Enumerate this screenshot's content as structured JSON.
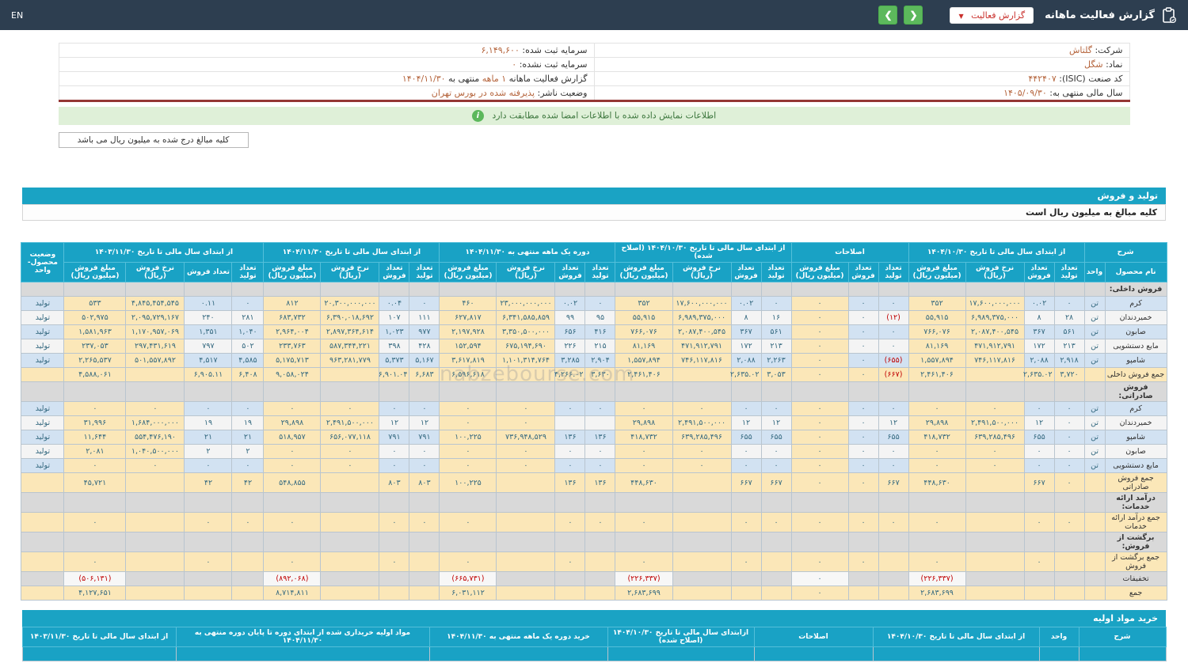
{
  "topbar": {
    "title": "گزارش فعالیت ماهانه",
    "dropdown": {
      "label": "گزارش فعالیت",
      "caret": "▼"
    },
    "nav": {
      "prev": "❮",
      "next": "❯"
    },
    "lang": "EN"
  },
  "info": {
    "rows": [
      {
        "right": {
          "label": "شرکت:",
          "value": "گلتاش"
        },
        "left": {
          "label": "سرمایه ثبت شده:",
          "value": "۶,۱۴۹,۶۰۰"
        }
      },
      {
        "right": {
          "label": "نماد:",
          "value": "شگل"
        },
        "left": {
          "label": "سرمایه ثبت نشده:",
          "value": "۰"
        }
      },
      {
        "right": {
          "label": "کد صنعت (ISIC):",
          "value": "۴۴۲۴۰۷"
        },
        "left": {
          "label": "گزارش فعالیت ماهانه",
          "value": "۱ ماهه",
          "label2": "منتهی به",
          "value2": "۱۴۰۴/۱۱/۳۰"
        }
      },
      {
        "right": {
          "label": "سال مالی منتهی به:",
          "value": "۱۴۰۵/۰۹/۳۰"
        },
        "left": {
          "label": "وضعیت ناشر:",
          "value": "پذیرفته شده در بورس تهران"
        }
      }
    ]
  },
  "alert": {
    "icon": "i",
    "text": "اطلاعات نمایش داده شده با اطلاعات امضا شده مطابقت دارد"
  },
  "note": {
    "text": "کلیه مبالغ درج شده به میلیون ریال می باشد"
  },
  "watermark": {
    "text": "nabzebourse.com"
  },
  "colors": {
    "topbar": "#2d3e50",
    "accent_blue": "#1aa3c4",
    "green": "#5cb85c",
    "alert_bg": "#dff0d8",
    "wheat": "#fbe7b8",
    "row_blue": "#d2e2f2",
    "negative_red": "#c00000",
    "value_orange": "#b5653d",
    "maroon_rule": "#943634"
  },
  "production_section": {
    "title": "تولید و فروش",
    "subtitle": "کلیه مبالغ به میلیون ریال است",
    "table": {
      "header": {
        "sharh": "شرح",
        "name": "نام محصول",
        "unit": "واحد",
        "status": "وضعیت محصول-واحد",
        "groups": [
          {
            "label": "از ابتدای سال مالی تا تاریخ ۱۴۰۴/۱۰/۳۰",
            "cols": [
              "تعداد تولید",
              "تعداد فروش",
              "نرخ فروش (ریال)",
              "مبلغ فروش (میلیون ریال)"
            ]
          },
          {
            "label": "اصلاحات",
            "cols": [
              "تعداد تولید",
              "تعداد فروش",
              "مبلغ فروش (میلیون ریال)"
            ]
          },
          {
            "label": "از ابتدای سال مالی تا تاریخ ۱۴۰۴/۱۰/۳۰ (اصلاح شده)",
            "cols": [
              "تعداد تولید",
              "تعداد فروش",
              "نرخ فروش (ریال)",
              "مبلغ فروش (میلیون ریال)"
            ]
          },
          {
            "label": "دوره یک ماهه منتهی به ۱۴۰۴/۱۱/۳۰",
            "cols": [
              "تعداد تولید",
              "تعداد فروش",
              "نرخ فروش (ریال)",
              "مبلغ فروش (میلیون ریال)"
            ]
          },
          {
            "label": "از ابتدای سال مالی تا تاریخ ۱۴۰۴/۱۱/۳۰",
            "cols": [
              "تعداد تولید",
              "تعداد فروش",
              "نرخ فروش (ریال)",
              "مبلغ فروش (میلیون ریال)"
            ]
          },
          {
            "label": "از ابتدای سال مالی تا تاریخ ۱۴۰۳/۱۱/۳۰",
            "cols": [
              "تعداد تولید",
              "تعداد فروش",
              "نرخ فروش (ریال)",
              "مبلغ فروش (میلیون ریال)"
            ]
          }
        ]
      },
      "rows": [
        {
          "type": "section",
          "name": "فروش داخلی:"
        },
        {
          "type": "product",
          "shade": "blue",
          "name": "کرم",
          "unit": "تن",
          "status": "تولید",
          "cells": [
            "۰",
            "۰.۰۲",
            "۱۷,۶۰۰,۰۰۰,۰۰۰",
            "۳۵۲",
            "۰",
            "۰",
            "۰",
            "۰",
            "۰.۰۲",
            "۱۷,۶۰۰,۰۰۰,۰۰۰",
            "۳۵۲",
            "۰",
            "۰.۰۲",
            "۲۳,۰۰۰,۰۰۰,۰۰۰",
            "۴۶۰",
            "۰",
            "۰.۰۴",
            "۲۰,۳۰۰,۰۰۰,۰۰۰",
            "۸۱۲",
            "۰",
            "۰.۱۱",
            "۴,۸۴۵,۴۵۴,۵۴۵",
            "۵۳۳"
          ]
        },
        {
          "type": "product",
          "shade": "white",
          "name": "خمیردندان",
          "unit": "تن",
          "status": "تولید",
          "cells": [
            "۲۸",
            "۸",
            "۶,۹۸۹,۳۷۵,۰۰۰",
            "۵۵,۹۱۵",
            "(۱۲)",
            "۰",
            "۰",
            "۱۶",
            "۸",
            "۶,۹۸۹,۳۷۵,۰۰۰",
            "۵۵,۹۱۵",
            "۹۵",
            "۹۹",
            "۶,۳۴۱,۵۸۵,۸۵۹",
            "۶۲۷,۸۱۷",
            "۱۱۱",
            "۱۰۷",
            "۶,۳۹۰,۰۱۸,۶۹۲",
            "۶۸۳,۷۳۲",
            "۲۸۱",
            "۲۴۰",
            "۲,۰۹۵,۷۲۹,۱۶۷",
            "۵۰۲,۹۷۵"
          ]
        },
        {
          "type": "product",
          "shade": "blue",
          "name": "صابون",
          "unit": "تن",
          "status": "تولید",
          "cells": [
            "۵۶۱",
            "۳۶۷",
            "۲,۰۸۷,۴۰۰,۵۴۵",
            "۷۶۶,۰۷۶",
            "۰",
            "۰",
            "۰",
            "۵۶۱",
            "۳۶۷",
            "۲,۰۸۷,۴۰۰,۵۴۵",
            "۷۶۶,۰۷۶",
            "۴۱۶",
            "۶۵۶",
            "۳,۳۵۰,۵۰۰,۰۰۰",
            "۲,۱۹۷,۹۲۸",
            "۹۷۷",
            "۱,۰۲۳",
            "۲,۸۹۷,۳۶۴,۶۱۴",
            "۲,۹۶۴,۰۰۴",
            "۱,۰۴۰",
            "۱,۳۵۱",
            "۱,۱۷۰,۹۵۷,۰۶۹",
            "۱,۵۸۱,۹۶۳"
          ]
        },
        {
          "type": "product",
          "shade": "white",
          "name": "مایع دستشویی",
          "unit": "تن",
          "status": "تولید",
          "cells": [
            "۲۱۳",
            "۱۷۲",
            "۴۷۱,۹۱۲,۷۹۱",
            "۸۱,۱۶۹",
            "۰",
            "۰",
            "۰",
            "۲۱۳",
            "۱۷۲",
            "۴۷۱,۹۱۲,۷۹۱",
            "۸۱,۱۶۹",
            "۲۱۵",
            "۲۲۶",
            "۶۷۵,۱۹۴,۶۹۰",
            "۱۵۲,۵۹۴",
            "۴۲۸",
            "۳۹۸",
            "۵۸۷,۳۴۴,۲۲۱",
            "۲۳۳,۷۶۳",
            "۵۰۲",
            "۷۹۷",
            "۲۹۷,۴۳۱,۶۱۹",
            "۲۳۷,۰۵۳"
          ]
        },
        {
          "type": "product",
          "shade": "blue",
          "name": "شامپو",
          "unit": "تن",
          "status": "تولید",
          "cells": [
            "۲,۹۱۸",
            "۲,۰۸۸",
            "۷۴۶,۱۱۷,۸۱۶",
            "۱,۵۵۷,۸۹۴",
            "(۶۵۵)",
            "۰",
            "۰",
            "۲,۲۶۳",
            "۲,۰۸۸",
            "۷۴۶,۱۱۷,۸۱۶",
            "۱,۵۵۷,۸۹۴",
            "۲,۹۰۴",
            "۳,۲۸۵",
            "۱,۱۰۱,۳۱۴,۷۶۴",
            "۳,۶۱۷,۸۱۹",
            "۵,۱۶۷",
            "۵,۳۷۳",
            "۹۶۳,۲۸۱,۷۷۹",
            "۵,۱۷۵,۷۱۳",
            "۴,۵۸۵",
            "۴,۵۱۷",
            "۵۰۱,۵۵۷,۸۹۲",
            "۲,۲۶۵,۵۳۷"
          ]
        },
        {
          "type": "total",
          "name": "جمع فروش داخلی",
          "unit": "",
          "status": "",
          "cells": [
            "۳,۷۲۰",
            "۲,۶۳۵.۰۲",
            "",
            "۲,۴۶۱,۴۰۶",
            "(۶۶۷)",
            "۰",
            "۰",
            "۳,۰۵۳",
            "۲,۶۳۵.۰۲",
            "",
            "۲,۴۶۱,۴۰۶",
            "۳,۶۳۰",
            "۴,۲۶۶.۰۲",
            "",
            "۶,۵۹۶,۶۱۸",
            "۶,۶۸۳",
            "۶,۹۰۱.۰۴",
            "",
            "۹,۰۵۸,۰۲۴",
            "۶,۴۰۸",
            "۶,۹۰۵.۱۱",
            "",
            "۴,۵۸۸,۰۶۱"
          ]
        },
        {
          "type": "section",
          "name": "فروش صادراتی:"
        },
        {
          "type": "product",
          "shade": "blue",
          "name": "کرم",
          "unit": "تن",
          "status": "تولید",
          "cells": [
            "۰",
            "۰",
            "۰",
            "۰",
            "۰",
            "۰",
            "۰",
            "۰",
            "۰",
            "۰",
            "۰",
            "۰",
            "۰",
            "۰",
            "۰",
            "۰",
            "۰",
            "۰",
            "۰",
            "۰",
            "۰",
            "۰",
            "۰"
          ]
        },
        {
          "type": "product",
          "shade": "white",
          "name": "خمیردندان",
          "unit": "تن",
          "status": "تولید",
          "cells": [
            "۰",
            "۱۲",
            "۲,۴۹۱,۵۰۰,۰۰۰",
            "۲۹,۸۹۸",
            "۱۲",
            "۰",
            "۰",
            "۱۲",
            "۱۲",
            "۲,۴۹۱,۵۰۰,۰۰۰",
            "۲۹,۸۹۸",
            "",
            "",
            "۰",
            "۰",
            "۱۲",
            "۱۲",
            "۲,۴۹۱,۵۰۰,۰۰۰",
            "۲۹,۸۹۸",
            "۱۹",
            "۱۹",
            "۱,۶۸۴,۰۰۰,۰۰۰",
            "۳۱,۹۹۶"
          ]
        },
        {
          "type": "product",
          "shade": "blue",
          "name": "شامپو",
          "unit": "تن",
          "status": "تولید",
          "cells": [
            "۰",
            "۶۵۵",
            "۶۳۹,۲۸۵,۴۹۶",
            "۴۱۸,۷۳۲",
            "۶۵۵",
            "۰",
            "۰",
            "۶۵۵",
            "۶۵۵",
            "۶۳۹,۲۸۵,۴۹۶",
            "۴۱۸,۷۳۲",
            "۱۳۶",
            "۱۳۶",
            "۷۳۶,۹۴۸,۵۲۹",
            "۱۰۰,۲۲۵",
            "۷۹۱",
            "۷۹۱",
            "۶۵۶,۰۷۷,۱۱۸",
            "۵۱۸,۹۵۷",
            "۲۱",
            "۲۱",
            "۵۵۴,۴۷۶,۱۹۰",
            "۱۱,۶۴۴"
          ]
        },
        {
          "type": "product",
          "shade": "white",
          "name": "صابون",
          "unit": "تن",
          "status": "تولید",
          "cells": [
            "۰",
            "۰",
            "۰",
            "۰",
            "۰",
            "۰",
            "۰",
            "۰",
            "۰",
            "۰",
            "۰",
            "۰",
            "۰",
            "۰",
            "۰",
            "۰",
            "۰",
            "۰",
            "۰",
            "۲",
            "۲",
            "۱,۰۴۰,۵۰۰,۰۰۰",
            "۲,۰۸۱"
          ]
        },
        {
          "type": "product",
          "shade": "blue",
          "name": "مایع دستشویی",
          "unit": "تن",
          "status": "تولید",
          "cells": [
            "۰",
            "۰",
            "۰",
            "۰",
            "۰",
            "۰",
            "۰",
            "۰",
            "۰",
            "۰",
            "۰",
            "۰",
            "۰",
            "۰",
            "۰",
            "۰",
            "۰",
            "۰",
            "۰",
            "۰",
            "۰",
            "۰",
            "۰"
          ]
        },
        {
          "type": "total",
          "name": "جمع فروش صادراتی",
          "unit": "",
          "status": "",
          "cells": [
            "۰",
            "۶۶۷",
            "",
            "۴۴۸,۶۳۰",
            "۶۶۷",
            "۰",
            "۰",
            "۶۶۷",
            "۶۶۷",
            "",
            "۴۴۸,۶۳۰",
            "۱۳۶",
            "۱۳۶",
            "",
            "۱۰۰,۲۲۵",
            "۸۰۳",
            "۸۰۳",
            "",
            "۵۴۸,۸۵۵",
            "۴۲",
            "۴۲",
            "",
            "۴۵,۷۲۱"
          ]
        },
        {
          "type": "section",
          "name": "درآمد ارائه خدمات:"
        },
        {
          "type": "total",
          "name": "جمع درآمد ارائه خدمات",
          "unit": "",
          "status": "",
          "cells": [
            "۰",
            "۰",
            "",
            "۰",
            "۰",
            "۰",
            "۰",
            "۰",
            "۰",
            "",
            "۰",
            "۰",
            "۰",
            "",
            "۰",
            "۰",
            "۰",
            "",
            "۰",
            "۰",
            "۰",
            "",
            "۰"
          ]
        },
        {
          "type": "section",
          "name": "برگشت از فروش:"
        },
        {
          "type": "total",
          "name": "جمع برگشت از فروش",
          "unit": "",
          "status": "",
          "cells": [
            "",
            "۰",
            "",
            "۰",
            "",
            "۰",
            "۰",
            "",
            "۰",
            "",
            "۰",
            "",
            "۰",
            "",
            "۰",
            "",
            "۰",
            "",
            "۰",
            "",
            "۰",
            "",
            "۰"
          ]
        },
        {
          "type": "discount",
          "name": "تخفیفات",
          "unit": "",
          "status": "",
          "cells": [
            "",
            "",
            "",
            "(۲۲۶,۳۳۷)",
            "",
            "",
            "۰",
            "",
            "",
            "",
            "(۲۲۶,۳۳۷)",
            "",
            "",
            "",
            "(۶۶۵,۷۳۱)",
            "",
            "",
            "",
            "(۸۹۲,۰۶۸)",
            "",
            "",
            "",
            "(۵۰۶,۱۳۱)"
          ]
        },
        {
          "type": "total",
          "name": "جمع",
          "unit": "",
          "status": "",
          "cells": [
            "",
            "",
            "",
            "۲,۶۸۳,۶۹۹",
            "",
            "",
            "۰",
            "",
            "",
            "",
            "۲,۶۸۳,۶۹۹",
            "",
            "",
            "",
            "۶,۰۳۱,۱۱۲",
            "",
            "",
            "",
            "۸,۷۱۴,۸۱۱",
            "",
            "",
            "",
            "۴,۱۲۷,۶۵۱"
          ]
        }
      ]
    }
  },
  "purchase_section": {
    "title": "خرید مواد اولیه",
    "header": {
      "sharh": "شرح",
      "unit": "واحد",
      "groups": [
        "از ابتدای سال مالی تا تاریخ ۱۴۰۴/۱۰/۳۰",
        "اصلاحات",
        "ازابتدای سال مالی تا تاریخ ۱۴۰۴/۱۰/۳۰ (اصلاح شده)",
        "خرید دوره یک ماهه منتهی به ۱۴۰۴/۱۱/۳۰",
        "مواد اولیه خریداری شده از ابتدای دوره تا پایان دوره منتهی به ۱۴۰۴/۱۱/۳۰",
        "از ابتدای سال مالی تا تاریخ ۱۴۰۳/۱۱/۳۰"
      ]
    }
  }
}
